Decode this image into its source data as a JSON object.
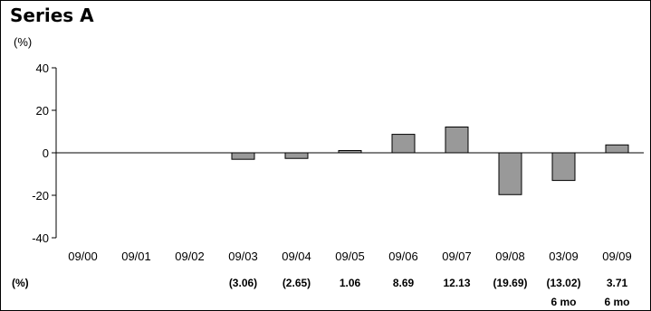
{
  "chart_data": {
    "type": "bar",
    "title": "Series A",
    "ylabel": "(%)",
    "ylim": [
      -40,
      40
    ],
    "yticks": [
      40,
      20,
      0,
      -20,
      -40
    ],
    "grid": false,
    "bar_color": "#999999",
    "categories": [
      "09/00",
      "09/01",
      "09/02",
      "09/03",
      "09/04",
      "09/05",
      "09/06",
      "09/07",
      "09/08",
      "03/09",
      "09/09"
    ],
    "values": [
      null,
      null,
      null,
      -3.06,
      -2.65,
      1.06,
      8.69,
      12.13,
      -19.69,
      -13.02,
      3.71
    ],
    "table": {
      "row_label": "(%)",
      "labels": [
        "",
        "",
        "",
        "(3.06)",
        "(2.65)",
        "1.06",
        "8.69",
        "12.13",
        "(19.69)",
        "(13.02)",
        "3.71"
      ],
      "sublabels": [
        "",
        "",
        "",
        "",
        "",
        "",
        "",
        "",
        "",
        "6 mo",
        "6 mo"
      ]
    }
  }
}
